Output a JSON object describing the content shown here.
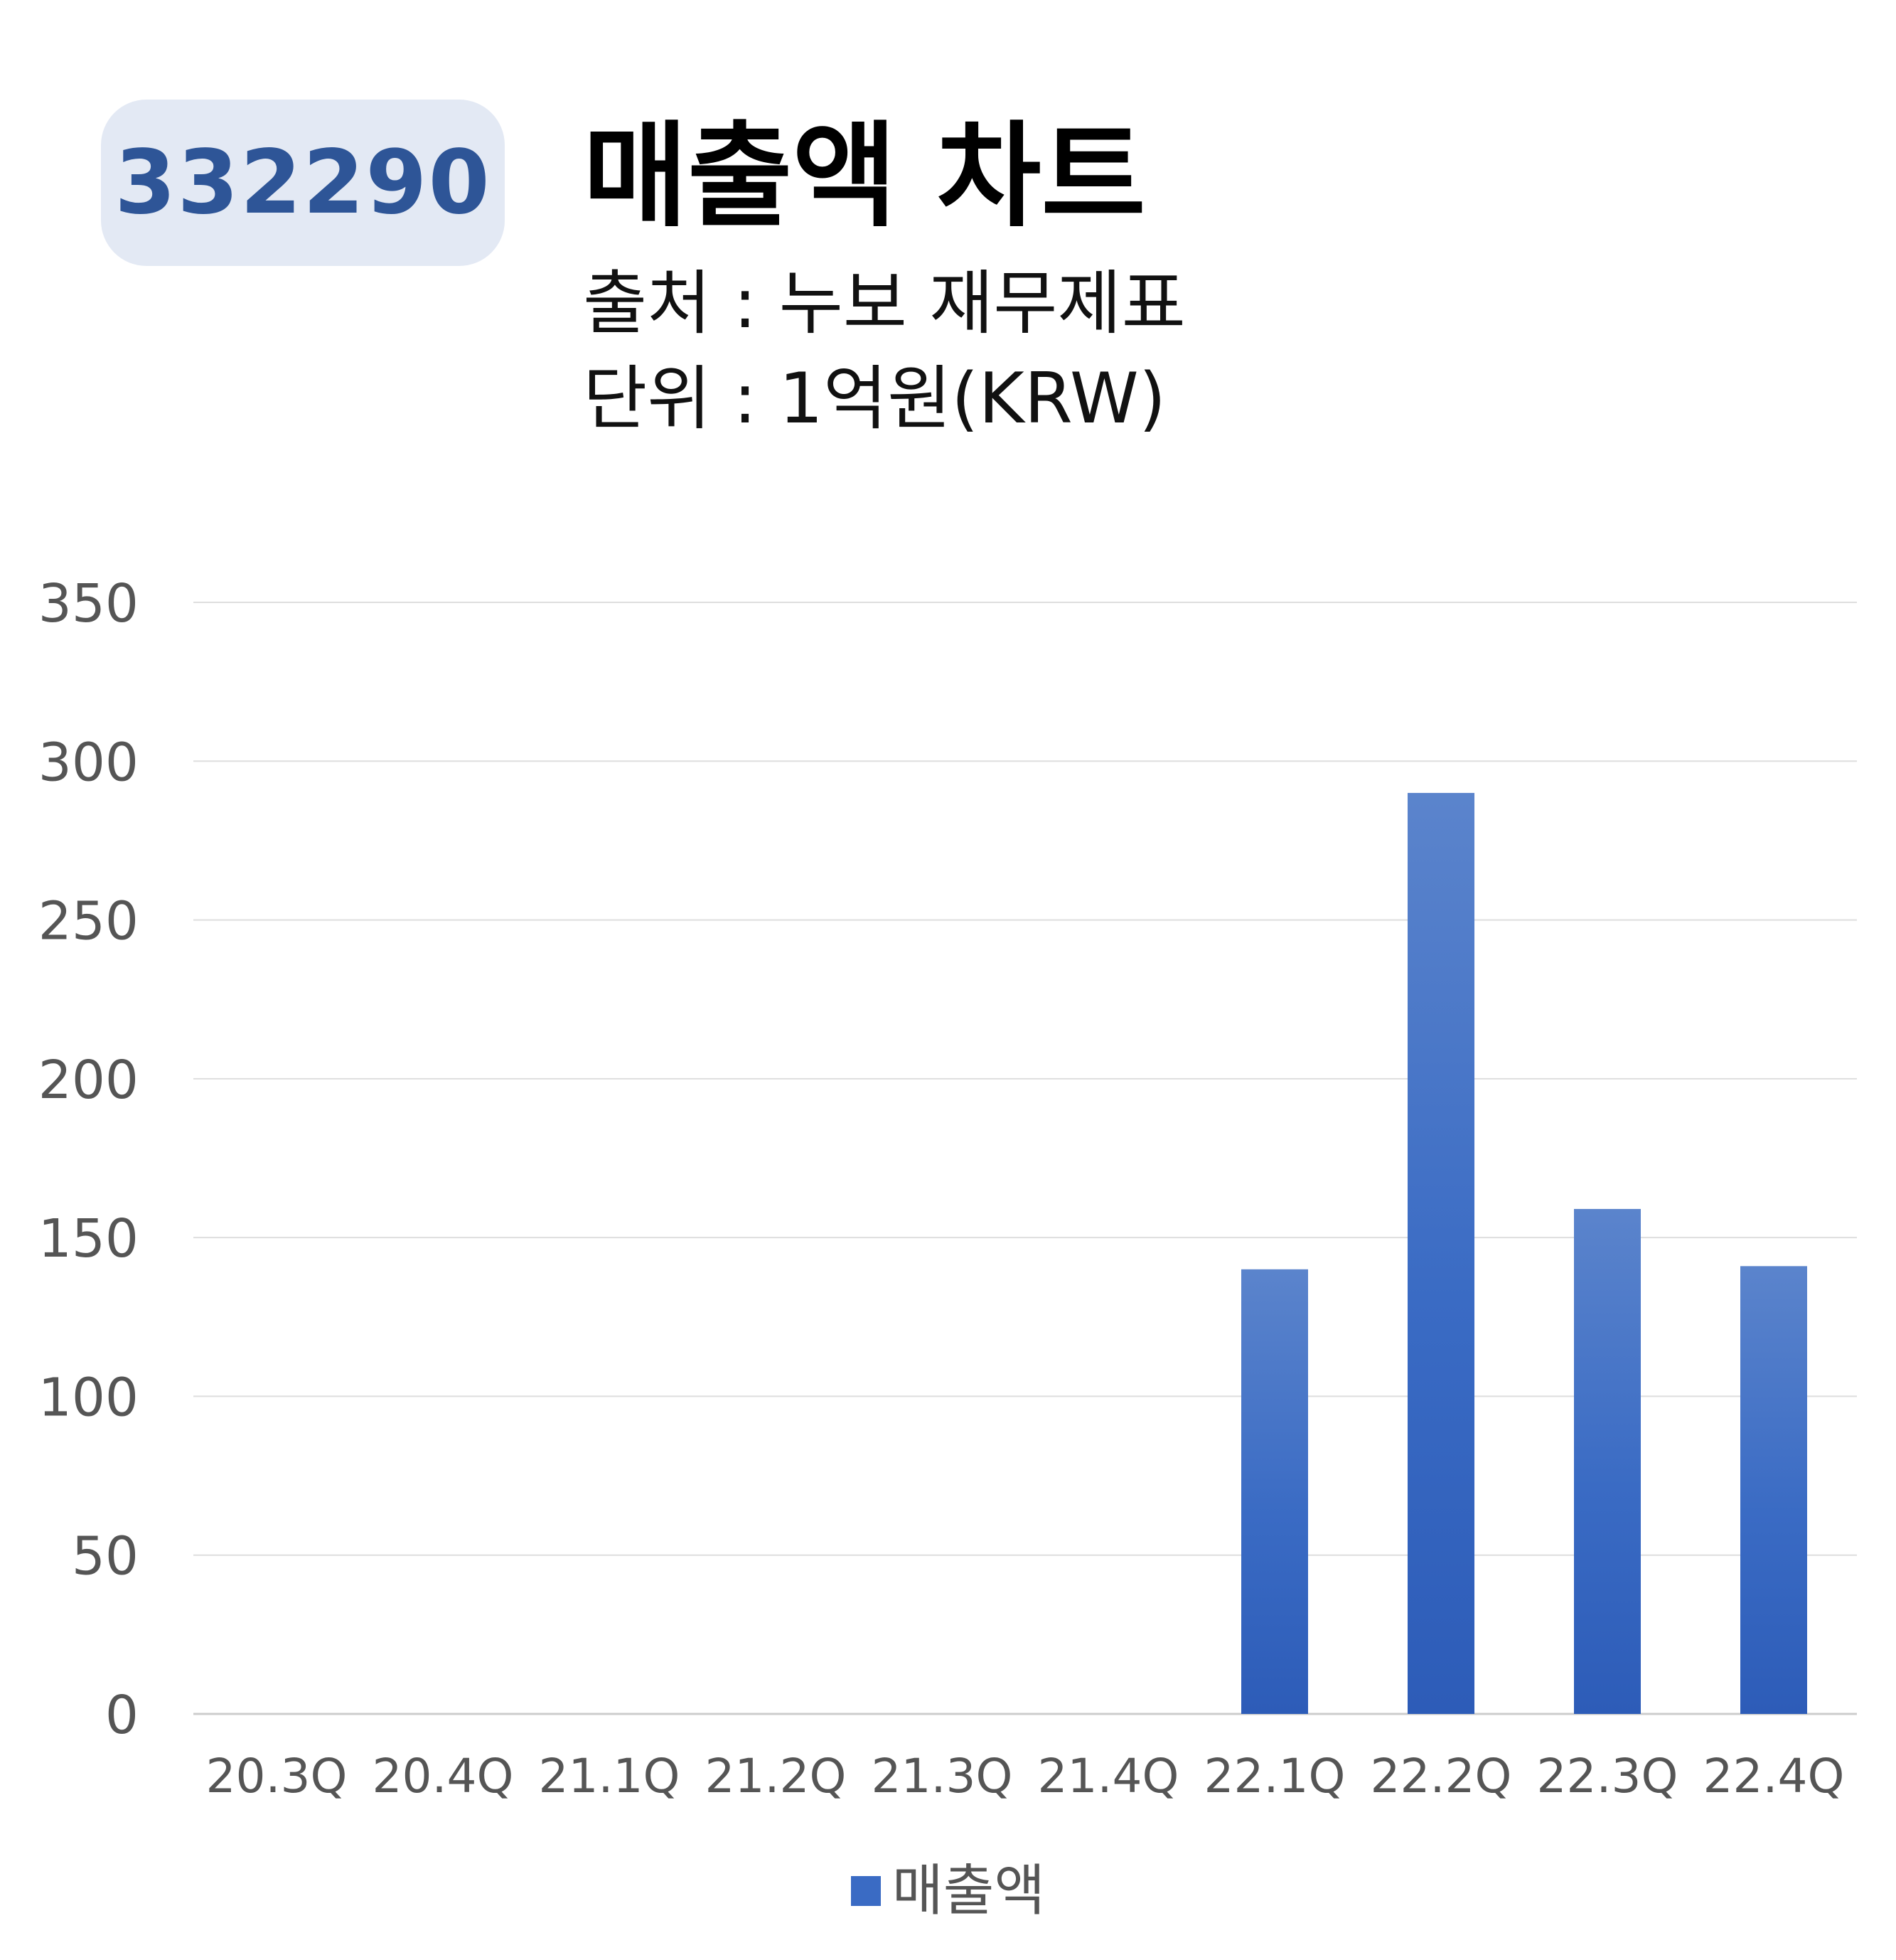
{
  "header": {
    "code": "332290",
    "title": "매출액 차트",
    "source": "출처 : 누보 재무제표",
    "unit": "단위 : 1억원(KRW)"
  },
  "colors": {
    "bar": "#3a6bc4",
    "bar_light": "#5b84cc",
    "bar_dark": "#2d5cb8",
    "badge_bg": "#e3e9f4",
    "badge_text": "#2e5597",
    "grid": "#d9d9d9"
  },
  "chart_data": {
    "type": "bar",
    "title": "매출액 차트",
    "categories": [
      "20.3Q",
      "20.4Q",
      "21.1Q",
      "21.2Q",
      "21.3Q",
      "21.4Q",
      "22.1Q",
      "22.2Q",
      "22.3Q",
      "22.4Q"
    ],
    "series": [
      {
        "name": "매출액",
        "values": [
          0,
          0,
          0,
          0,
          0,
          0,
          140,
          290,
          159,
          141
        ]
      }
    ],
    "ylim": [
      0,
      350
    ],
    "yticks": [
      0,
      50,
      100,
      150,
      200,
      250,
      300,
      350
    ],
    "grid": true,
    "legend": "bottom"
  },
  "legend": {
    "label": "매출액"
  }
}
